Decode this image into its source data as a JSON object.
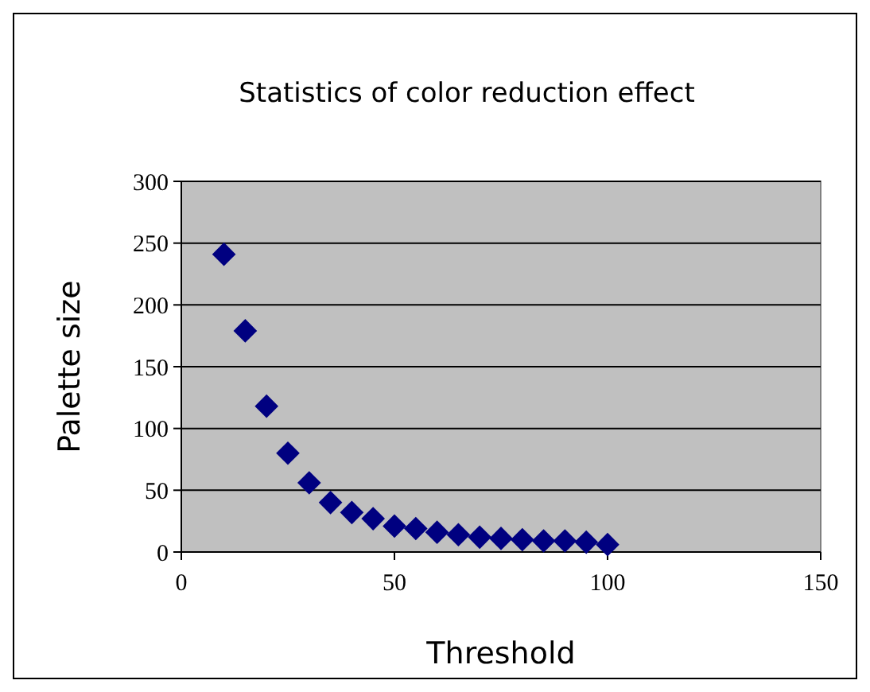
{
  "chart_data": {
    "type": "scatter",
    "title": "Statistics of color reduction effect",
    "xlabel": "Threshold",
    "ylabel": "Palette size",
    "x": [
      10,
      15,
      20,
      25,
      30,
      35,
      40,
      45,
      50,
      55,
      60,
      65,
      70,
      75,
      80,
      85,
      90,
      95,
      100
    ],
    "series": [
      {
        "color": "#000080",
        "values": [
          241,
          179,
          118,
          80,
          56,
          40,
          32,
          27,
          21,
          19,
          16,
          14,
          12,
          11,
          10,
          9,
          9,
          8,
          6
        ]
      }
    ],
    "xlim": [
      0,
      150
    ],
    "xticks": [
      0,
      50,
      100,
      150
    ],
    "ylim": [
      0,
      300
    ],
    "yticks": [
      0,
      50,
      100,
      150,
      200,
      250,
      300
    ],
    "grid": "y",
    "marker": "diamond"
  }
}
